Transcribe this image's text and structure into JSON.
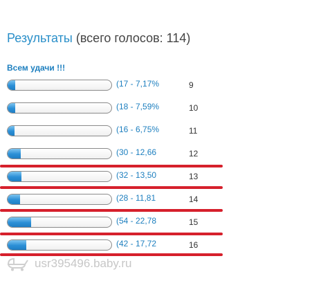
{
  "poll": {
    "title": "Результаты",
    "total_text": "(всего голосов: 114)",
    "subtitle": "Всем удачи !!!",
    "options": [
      {
        "stat": "(17 - 7,17%",
        "label": "9",
        "fill": 0.0717
      },
      {
        "stat": "(18 - 7,59%",
        "label": "10",
        "fill": 0.0759
      },
      {
        "stat": "(16 - 6,75%",
        "label": "11",
        "fill": 0.0675
      },
      {
        "stat": "(30 - 12,66",
        "label": "12",
        "fill": 0.1266
      },
      {
        "stat": "(32 - 13,50",
        "label": "13",
        "fill": 0.135
      },
      {
        "stat": "(28 - 11,81",
        "label": "14",
        "fill": 0.1181
      },
      {
        "stat": "(54 - 22,78",
        "label": "15",
        "fill": 0.2278
      },
      {
        "stat": "(42 - 17,72",
        "label": "16",
        "fill": 0.1772
      }
    ]
  },
  "colors": {
    "bar_fill": "#2b8fd6",
    "link_text": "#1d7fbf",
    "highlight_line": "#d6202c"
  },
  "watermark": {
    "text": "usr395496.baby.ru",
    "icon": "stroller-icon"
  }
}
